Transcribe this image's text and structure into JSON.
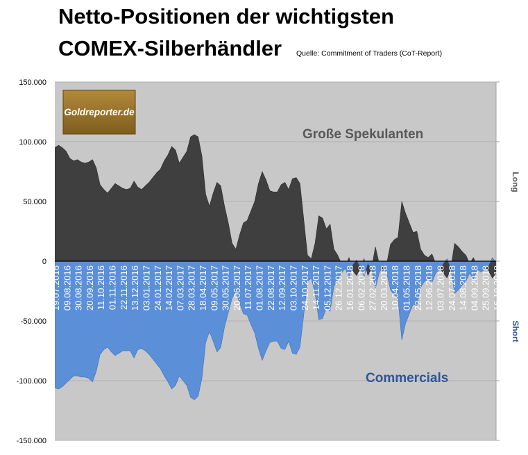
{
  "title_line1": "Netto-Positionen der wichtigsten",
  "title_line2": "COMEX-Silberhändler",
  "source": "Quelle: Commitment of Traders (CoT-Report)",
  "logo_text": "Goldreporter.de",
  "colors": {
    "plot_bg": "#c8c8c8",
    "speculators": "#3f3f3f",
    "commercials": "#5b8fd8",
    "label_spec": "#595959",
    "label_comm": "#2f5597"
  },
  "chart_data": {
    "type": "area",
    "title": "Netto-Positionen der wichtigsten COMEX-Silberhändler",
    "ylim": [
      -150000,
      150000
    ],
    "yticks": [
      150000,
      100000,
      50000,
      0,
      -50000,
      -100000,
      -150000
    ],
    "ytick_labels": [
      "150.000",
      "100.000",
      "50.000",
      "0",
      "-50.000",
      "-100.000",
      "-150.000"
    ],
    "right_axis_labels": {
      "top": "Long",
      "bottom": "Short"
    },
    "annotations": {
      "speculators": "Große Spekulanten",
      "commercials": "Commercials"
    },
    "x_tick_labels": [
      "19.07.2016",
      "09.08.2016",
      "30.08.2016",
      "20.09.2016",
      "11.10.2016",
      "01.11.2016",
      "22.11.2016",
      "13.12.2016",
      "03.01.2017",
      "24.01.2017",
      "14.02.2017",
      "07.03.2017",
      "28.03.2017",
      "18.04.2017",
      "09.05.2017",
      "30.05.2017",
      "20.06.2017",
      "11.07.2017",
      "01.08.2017",
      "22.08.2017",
      "12.09.2017",
      "03.10.2017",
      "24.10.2017",
      "14.11.2017",
      "05.12.2017",
      "26.12.2017",
      "16.01.2018",
      "06.02.2018",
      "27.02.2018",
      "20.03.2018",
      "10.04.2018",
      "01.05.2018",
      "22.05.2018",
      "12.06.2018",
      "03.07.2018",
      "24.07.2018",
      "14.08.2018",
      "04.09.2018",
      "25.09.2018",
      "16.10.2018",
      "06.11.2018"
    ],
    "x_tick_every_n_points": 3,
    "series": [
      {
        "name": "Große Spekulanten",
        "values": [
          95000,
          97000,
          95000,
          92000,
          86000,
          84000,
          85000,
          83000,
          82000,
          83000,
          85000,
          78000,
          64000,
          60000,
          57000,
          61000,
          65000,
          63000,
          61000,
          60000,
          61000,
          67000,
          62000,
          60000,
          63000,
          66000,
          70000,
          74000,
          77000,
          84000,
          89000,
          96000,
          93000,
          82000,
          87000,
          92000,
          104000,
          106000,
          104000,
          88000,
          56000,
          46000,
          57000,
          66000,
          63000,
          46000,
          32000,
          15000,
          10000,
          22000,
          32000,
          34000,
          42000,
          50000,
          65000,
          75000,
          68000,
          59000,
          58000,
          58000,
          64000,
          66000,
          60000,
          69000,
          70000,
          65000,
          35000,
          5000,
          2000,
          15000,
          38000,
          36000,
          27000,
          31000,
          10000,
          5000,
          -2000,
          -5000,
          3000,
          -8000,
          -12000,
          -6000,
          2000,
          -12000,
          -6000,
          12000,
          -2000,
          -8000,
          -2000,
          14000,
          18000,
          20000,
          50000,
          40000,
          32000,
          24000,
          25000,
          10000,
          5000,
          3000,
          6000,
          -2000,
          -5000,
          -10000,
          -14000,
          -6000,
          15000,
          12000,
          8000,
          5000,
          -2000,
          3000,
          -5000,
          -3000,
          -5000,
          -8000,
          -14000,
          -10000
        ]
      },
      {
        "name": "Commercials",
        "values": [
          -106000,
          -107000,
          -105000,
          -102000,
          -99000,
          -96000,
          -96000,
          -97000,
          -97000,
          -98000,
          -101000,
          -92000,
          -78000,
          -74000,
          -72000,
          -76000,
          -79000,
          -77000,
          -75000,
          -75000,
          -75000,
          -81000,
          -74000,
          -73000,
          -75000,
          -78000,
          -82000,
          -86000,
          -90000,
          -96000,
          -101000,
          -107000,
          -104000,
          -96000,
          -100000,
          -104000,
          -114000,
          -116000,
          -113000,
          -98000,
          -68000,
          -59000,
          -67000,
          -76000,
          -72000,
          -55000,
          -43000,
          -31000,
          -26000,
          -35000,
          -44000,
          -45000,
          -53000,
          -60000,
          -73000,
          -83000,
          -75000,
          -68000,
          -67000,
          -67000,
          -73000,
          -74000,
          -67000,
          -77000,
          -78000,
          -72000,
          -45000,
          -17000,
          -14000,
          -27000,
          -49000,
          -48000,
          -39000,
          -42000,
          -21000,
          -16000,
          -10000,
          -6000,
          -14000,
          -3000,
          1000,
          -5000,
          -13000,
          -2000,
          -7000,
          -23000,
          -10000,
          -4000,
          -10000,
          -24000,
          -28000,
          -31000,
          -66000,
          -52000,
          -44000,
          -36000,
          -37000,
          -22000,
          -17000,
          -15000,
          -18000,
          -10000,
          -7000,
          -2000,
          2000,
          -6000,
          -27000,
          -24000,
          -20000,
          -17000,
          -10000,
          -15000,
          -7000,
          -9000,
          -7000,
          -4000,
          3000,
          -1000
        ]
      }
    ]
  }
}
